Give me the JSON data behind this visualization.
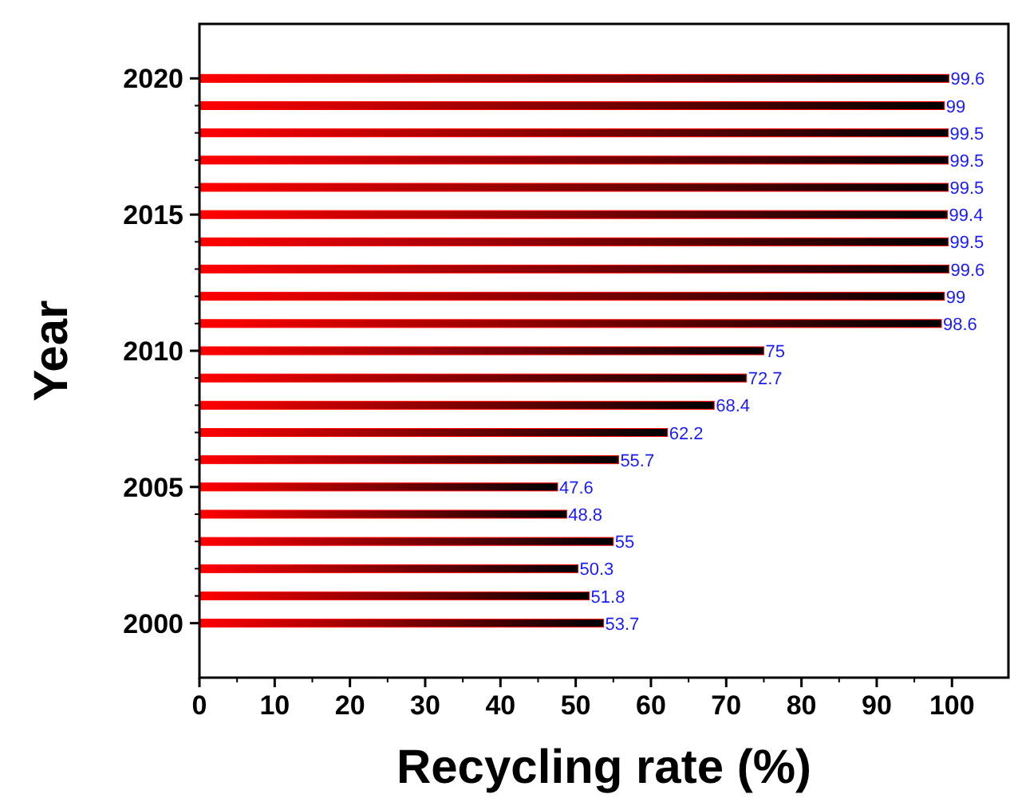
{
  "chart_data": {
    "type": "bar",
    "orientation": "horizontal",
    "xlabel": "Recycling rate (%)",
    "ylabel": "Year",
    "categories": [
      "2020",
      null,
      null,
      null,
      null,
      "2015",
      null,
      null,
      null,
      null,
      "2010",
      null,
      null,
      null,
      null,
      "2005",
      null,
      null,
      null,
      null,
      "2000"
    ],
    "values": [
      99.6,
      99,
      99.5,
      99.5,
      99.5,
      99.4,
      99.5,
      99.6,
      99,
      98.6,
      75,
      72.7,
      68.4,
      62.2,
      55.7,
      47.6,
      48.8,
      55,
      50.3,
      51.8,
      53.7
    ],
    "color": "#ff0000",
    "xlim": [
      0,
      107.5
    ],
    "xticks": [
      0,
      10,
      20,
      30,
      40,
      50,
      60,
      70,
      80,
      90,
      100
    ],
    "data_labels": true
  }
}
